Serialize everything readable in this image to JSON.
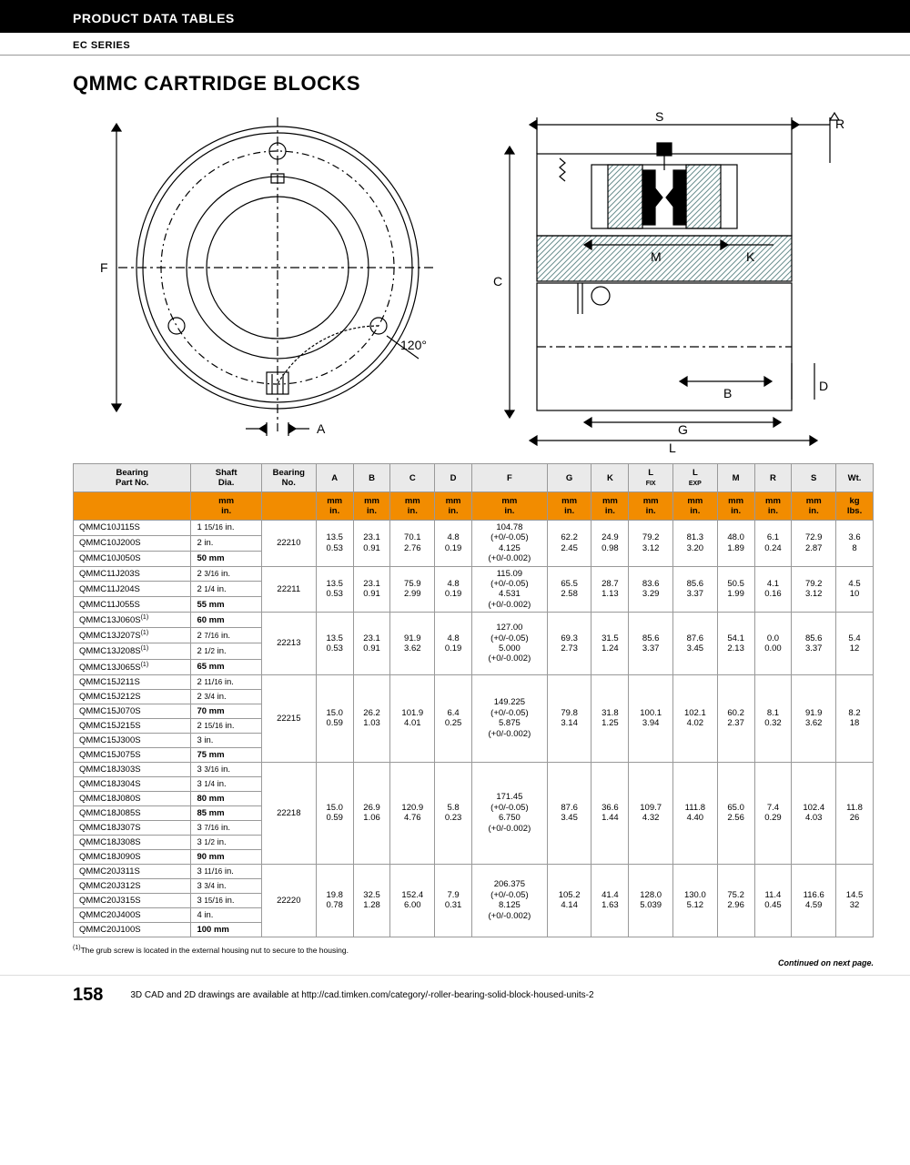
{
  "header": {
    "top": "PRODUCT DATA TABLES",
    "sub": "EC SERIES",
    "title": "QMMC CARTRIDGE BLOCKS"
  },
  "diagram": {
    "left_labels": {
      "F": "F",
      "A": "A",
      "angle": "120°"
    },
    "right_labels": {
      "S": "S",
      "R": "R",
      "M": "M",
      "K": "K",
      "C": "C",
      "B": "B",
      "D": "D",
      "G": "G",
      "L": "L"
    },
    "stroke_color": "#000000",
    "hatch_color": "#6a8e8e",
    "bg": "#ffffff"
  },
  "table": {
    "header_bg": "#eaeaea",
    "orange_bg": "#f28c00",
    "columns": [
      "Bearing\nPart No.",
      "Shaft\nDia.",
      "Bearing\nNo.",
      "A",
      "B",
      "C",
      "D",
      "F",
      "G",
      "K",
      "L FIX",
      "L EXP",
      "M",
      "R",
      "S",
      "Wt."
    ],
    "col_sub_fix": "FIX",
    "col_sub_exp": "EXP",
    "unit_row": [
      "",
      "mm\nin.",
      "",
      "mm\nin.",
      "mm\nin.",
      "mm\nin.",
      "mm\nin.",
      "mm\nin.",
      "mm\nin.",
      "mm\nin.",
      "mm\nin.",
      "mm\nin.",
      "mm\nin.",
      "mm\nin.",
      "mm\nin.",
      "kg\nlbs."
    ],
    "groups": [
      {
        "parts": [
          {
            "pn": "QMMC10J115S",
            "shaft": "1 15/16 in."
          },
          {
            "pn": "QMMC10J200S",
            "shaft": "2 in."
          },
          {
            "pn": "QMMC10J050S",
            "shaft": "50 mm",
            "bold": true
          }
        ],
        "bearing": "22210",
        "A": [
          "13.5",
          "0.53"
        ],
        "B": [
          "23.1",
          "0.91"
        ],
        "C": [
          "70.1",
          "2.76"
        ],
        "D": [
          "4.8",
          "0.19"
        ],
        "F": [
          "104.78",
          "(+0/-0.05)",
          "4.125",
          "(+0/-0.002)"
        ],
        "G": [
          "62.2",
          "2.45"
        ],
        "K": [
          "24.9",
          "0.98"
        ],
        "LFIX": [
          "79.2",
          "3.12"
        ],
        "LEXP": [
          "81.3",
          "3.20"
        ],
        "M": [
          "48.0",
          "1.89"
        ],
        "R": [
          "6.1",
          "0.24"
        ],
        "S": [
          "72.9",
          "2.87"
        ],
        "Wt": [
          "3.6",
          "8"
        ]
      },
      {
        "parts": [
          {
            "pn": "QMMC11J203S",
            "shaft": "2 3/16 in."
          },
          {
            "pn": "QMMC11J204S",
            "shaft": "2 1/4 in."
          },
          {
            "pn": "QMMC11J055S",
            "shaft": "55 mm",
            "bold": true
          }
        ],
        "bearing": "22211",
        "A": [
          "13.5",
          "0.53"
        ],
        "B": [
          "23.1",
          "0.91"
        ],
        "C": [
          "75.9",
          "2.99"
        ],
        "D": [
          "4.8",
          "0.19"
        ],
        "F": [
          "115.09",
          "(+0/-0.05)",
          "4.531",
          "(+0/-0.002)"
        ],
        "G": [
          "65.5",
          "2.58"
        ],
        "K": [
          "28.7",
          "1.13"
        ],
        "LFIX": [
          "83.6",
          "3.29"
        ],
        "LEXP": [
          "85.6",
          "3.37"
        ],
        "M": [
          "50.5",
          "1.99"
        ],
        "R": [
          "4.1",
          "0.16"
        ],
        "S": [
          "79.2",
          "3.12"
        ],
        "Wt": [
          "4.5",
          "10"
        ]
      },
      {
        "parts": [
          {
            "pn": "QMMC13J060S(1)",
            "shaft": "60 mm",
            "bold": true,
            "sup": true
          },
          {
            "pn": "QMMC13J207S(1)",
            "shaft": "2 7/16 in.",
            "sup": true
          },
          {
            "pn": "QMMC13J208S(1)",
            "shaft": "2 1/2 in.",
            "sup": true
          },
          {
            "pn": "QMMC13J065S(1)",
            "shaft": "65 mm",
            "bold": true,
            "sup": true
          }
        ],
        "bearing": "22213",
        "A": [
          "13.5",
          "0.53"
        ],
        "B": [
          "23.1",
          "0.91"
        ],
        "C": [
          "91.9",
          "3.62"
        ],
        "D": [
          "4.8",
          "0.19"
        ],
        "F": [
          "127.00",
          "(+0/-0.05)",
          "5.000",
          "(+0/-0.002)"
        ],
        "G": [
          "69.3",
          "2.73"
        ],
        "K": [
          "31.5",
          "1.24"
        ],
        "LFIX": [
          "85.6",
          "3.37"
        ],
        "LEXP": [
          "87.6",
          "3.45"
        ],
        "M": [
          "54.1",
          "2.13"
        ],
        "R": [
          "0.0",
          "0.00"
        ],
        "S": [
          "85.6",
          "3.37"
        ],
        "Wt": [
          "5.4",
          "12"
        ]
      },
      {
        "parts": [
          {
            "pn": "QMMC15J211S",
            "shaft": "2 11/16 in."
          },
          {
            "pn": "QMMC15J212S",
            "shaft": "2 3/4 in."
          },
          {
            "pn": "QMMC15J070S",
            "shaft": "70 mm",
            "bold": true
          },
          {
            "pn": "QMMC15J215S",
            "shaft": "2 15/16 in."
          },
          {
            "pn": "QMMC15J300S",
            "shaft": "3 in."
          },
          {
            "pn": "QMMC15J075S",
            "shaft": "75 mm",
            "bold": true
          }
        ],
        "bearing": "22215",
        "A": [
          "15.0",
          "0.59"
        ],
        "B": [
          "26.2",
          "1.03"
        ],
        "C": [
          "101.9",
          "4.01"
        ],
        "D": [
          "6.4",
          "0.25"
        ],
        "F": [
          "149.225",
          "(+0/-0.05)",
          "5.875",
          "(+0/-0.002)"
        ],
        "G": [
          "79.8",
          "3.14"
        ],
        "K": [
          "31.8",
          "1.25"
        ],
        "LFIX": [
          "100.1",
          "3.94"
        ],
        "LEXP": [
          "102.1",
          "4.02"
        ],
        "M": [
          "60.2",
          "2.37"
        ],
        "R": [
          "8.1",
          "0.32"
        ],
        "S": [
          "91.9",
          "3.62"
        ],
        "Wt": [
          "8.2",
          "18"
        ]
      },
      {
        "parts": [
          {
            "pn": "QMMC18J303S",
            "shaft": "3 3/16 in."
          },
          {
            "pn": "QMMC18J304S",
            "shaft": "3 1/4 in."
          },
          {
            "pn": "QMMC18J080S",
            "shaft": "80 mm",
            "bold": true
          },
          {
            "pn": "QMMC18J085S",
            "shaft": "85 mm",
            "bold": true
          },
          {
            "pn": "QMMC18J307S",
            "shaft": "3 7/16 in."
          },
          {
            "pn": "QMMC18J308S",
            "shaft": "3 1/2 in."
          },
          {
            "pn": "QMMC18J090S",
            "shaft": "90 mm",
            "bold": true
          }
        ],
        "bearing": "22218",
        "A": [
          "15.0",
          "0.59"
        ],
        "B": [
          "26.9",
          "1.06"
        ],
        "C": [
          "120.9",
          "4.76"
        ],
        "D": [
          "5.8",
          "0.23"
        ],
        "F": [
          "171.45",
          "(+0/-0.05)",
          "6.750",
          "(+0/-0.002)"
        ],
        "G": [
          "87.6",
          "3.45"
        ],
        "K": [
          "36.6",
          "1.44"
        ],
        "LFIX": [
          "109.7",
          "4.32"
        ],
        "LEXP": [
          "111.8",
          "4.40"
        ],
        "M": [
          "65.0",
          "2.56"
        ],
        "R": [
          "7.4",
          "0.29"
        ],
        "S": [
          "102.4",
          "4.03"
        ],
        "Wt": [
          "11.8",
          "26"
        ]
      },
      {
        "parts": [
          {
            "pn": "QMMC20J311S",
            "shaft": "3 11/16 in."
          },
          {
            "pn": "QMMC20J312S",
            "shaft": "3 3/4 in."
          },
          {
            "pn": "QMMC20J315S",
            "shaft": "3 15/16 in."
          },
          {
            "pn": "QMMC20J400S",
            "shaft": "4 in."
          },
          {
            "pn": "QMMC20J100S",
            "shaft": "100 mm",
            "bold": true
          }
        ],
        "bearing": "22220",
        "A": [
          "19.8",
          "0.78"
        ],
        "B": [
          "32.5",
          "1.28"
        ],
        "C": [
          "152.4",
          "6.00"
        ],
        "D": [
          "7.9",
          "0.31"
        ],
        "F": [
          "206.375",
          "(+0/-0.05)",
          "8.125",
          "(+0/-0.002)"
        ],
        "G": [
          "105.2",
          "4.14"
        ],
        "K": [
          "41.4",
          "1.63"
        ],
        "LFIX": [
          "128.0",
          "5.039"
        ],
        "LEXP": [
          "130.0",
          "5.12"
        ],
        "M": [
          "75.2",
          "2.96"
        ],
        "R": [
          "11.4",
          "0.45"
        ],
        "S": [
          "116.6",
          "4.59"
        ],
        "Wt": [
          "14.5",
          "32"
        ]
      }
    ]
  },
  "footnote": "(1)The grub screw is located in the external housing nut to secure to the housing.",
  "continued": "Continued on next page.",
  "footer": {
    "page": "158",
    "text": "3D CAD and 2D drawings are available at http://cad.timken.com/category/-roller-bearing-solid-block-housed-units-2"
  }
}
